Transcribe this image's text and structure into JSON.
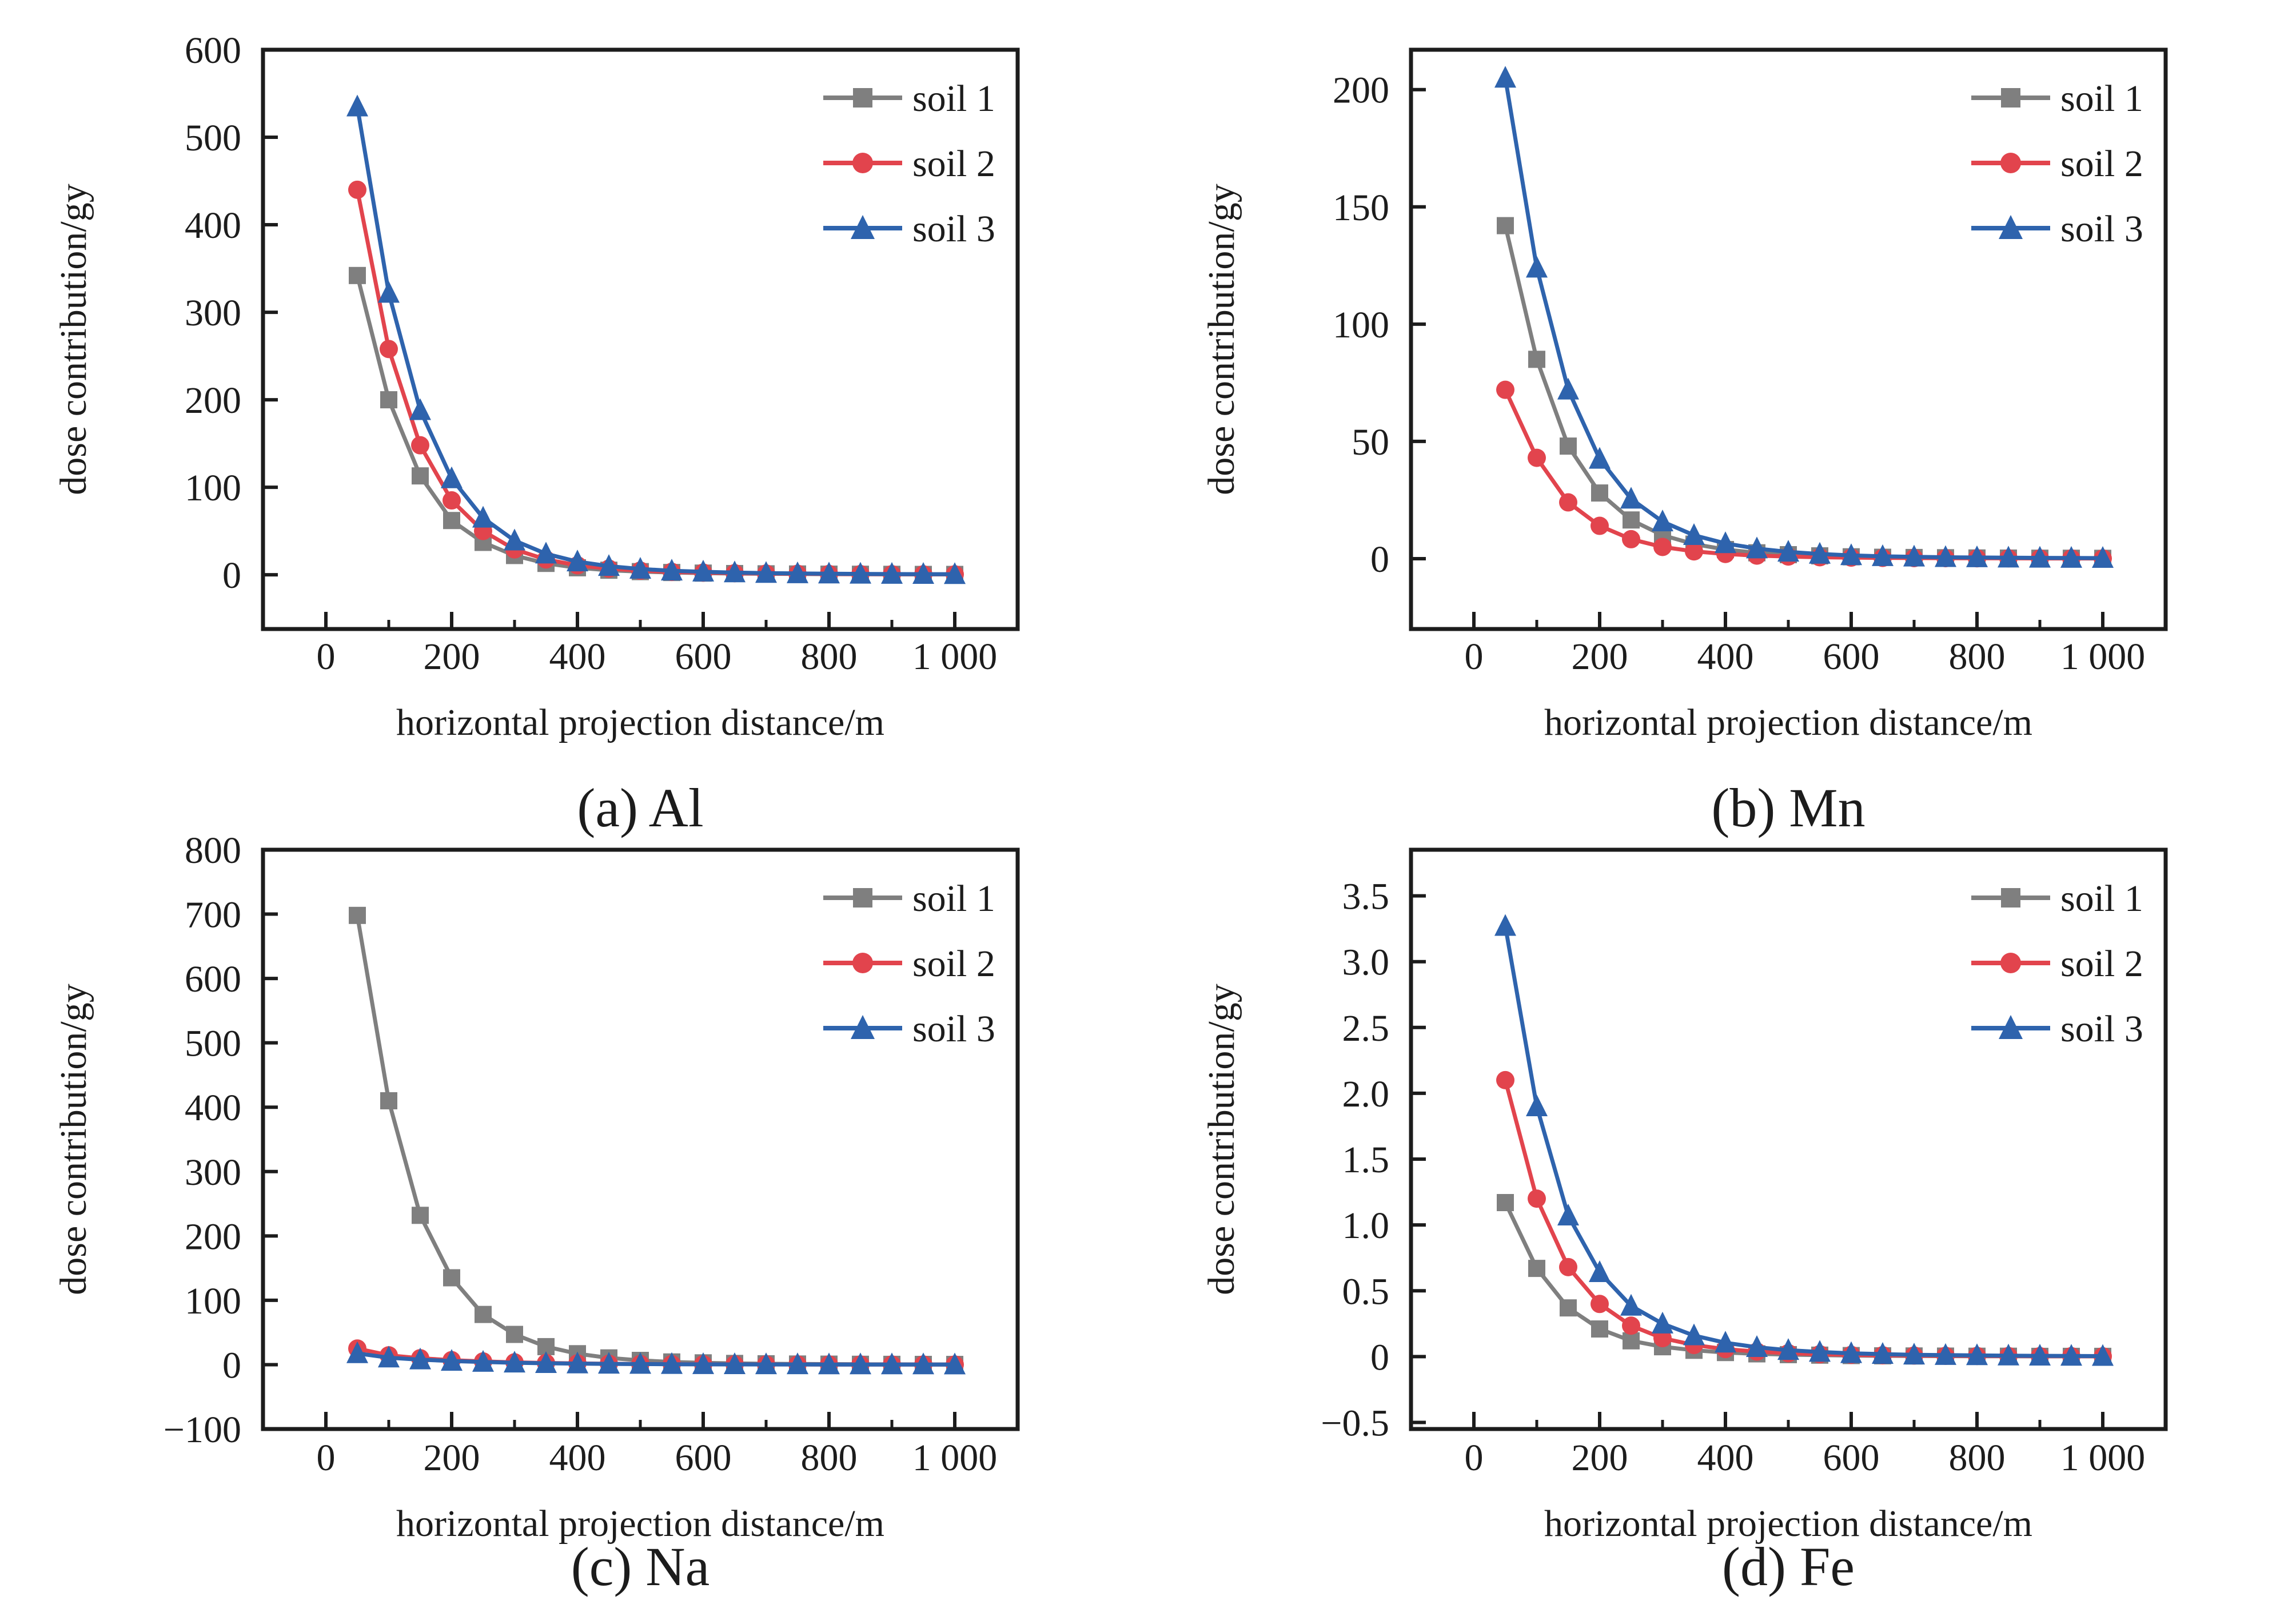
{
  "figure": {
    "background": "#ffffff",
    "frame_color": "#1c1c1c",
    "text_color": "#1c1c1c",
    "xlabel": "horizontal projection distance/m",
    "ylabel": "dose contribution/gy",
    "x_tick_labels": [
      "0",
      "200",
      "400",
      "600",
      "800",
      "1 000"
    ],
    "x_tick_values": [
      0,
      200,
      400,
      600,
      800,
      1000
    ],
    "x_minor_tick_values": [
      100,
      300,
      500,
      700,
      900
    ],
    "xlim": [
      -100,
      1100
    ],
    "legend": {
      "position": "top-right",
      "items": [
        {
          "label": "soil 1",
          "marker": "square",
          "color": "#7f7f7f"
        },
        {
          "label": "soil 2",
          "marker": "circle",
          "color": "#e2444d"
        },
        {
          "label": "soil 3",
          "marker": "triangle",
          "color": "#2e63ad"
        }
      ]
    }
  },
  "chart_data": [
    {
      "type": "line",
      "panel": "a",
      "caption": "(a) Al",
      "element": "Al",
      "title": "",
      "xlabel": "horizontal projection distance/m",
      "ylabel": "dose contribution/gy",
      "grid": false,
      "legend_position": "top-right",
      "ylim": [
        -62,
        600
      ],
      "ytick_values": [
        0,
        100,
        200,
        300,
        400,
        500,
        600
      ],
      "ytick_labels": [
        "0",
        "100",
        "200",
        "300",
        "400",
        "500",
        "600"
      ],
      "x": [
        50,
        100,
        150,
        200,
        250,
        300,
        350,
        400,
        450,
        500,
        550,
        600,
        650,
        700,
        750,
        800,
        850,
        900,
        950,
        1000
      ],
      "series": [
        {
          "name": "soil 1",
          "marker": "square",
          "color": "#7f7f7f",
          "values": [
            342,
            200,
            113,
            62,
            37,
            22,
            13,
            8,
            5.2,
            3.6,
            2.6,
            1.9,
            1.4,
            1.1,
            0.9,
            0.7,
            0.6,
            0.5,
            0.4,
            0.4
          ]
        },
        {
          "name": "soil 2",
          "marker": "circle",
          "color": "#e2444d",
          "values": [
            440,
            258,
            148,
            85,
            50,
            29,
            17.5,
            10.8,
            7,
            4.7,
            3.3,
            2.4,
            1.8,
            1.4,
            1.1,
            0.9,
            0.7,
            0.6,
            0.5,
            0.5
          ]
        },
        {
          "name": "soil 3",
          "marker": "triangle",
          "color": "#2e63ad",
          "values": [
            535,
            322,
            188,
            110,
            65,
            39,
            24,
            15,
            9.8,
            6.6,
            4.6,
            3.4,
            2.5,
            1.9,
            1.5,
            1.2,
            1,
            0.8,
            0.7,
            0.6
          ]
        }
      ]
    },
    {
      "type": "line",
      "panel": "b",
      "caption": "(b) Mn",
      "element": "Mn",
      "title": "",
      "xlabel": "horizontal projection distance/m",
      "ylabel": "dose contribution/gy",
      "grid": false,
      "legend_position": "top-right",
      "ylim": [
        -30,
        217
      ],
      "ytick_values": [
        0,
        50,
        100,
        150,
        200
      ],
      "ytick_labels": [
        "0",
        "50",
        "100",
        "150",
        "200"
      ],
      "x": [
        50,
        100,
        150,
        200,
        250,
        300,
        350,
        400,
        450,
        500,
        550,
        600,
        650,
        700,
        750,
        800,
        850,
        900,
        950,
        1000
      ],
      "series": [
        {
          "name": "soil 1",
          "marker": "square",
          "color": "#7f7f7f",
          "values": [
            142,
            85,
            48,
            28,
            16.5,
            10,
            6.2,
            3.9,
            2.5,
            1.7,
            1.2,
            0.8,
            0.6,
            0.5,
            0.4,
            0.3,
            0.25,
            0.2,
            0.18,
            0.15
          ]
        },
        {
          "name": "soil 2",
          "marker": "circle",
          "color": "#e2444d",
          "values": [
            72,
            43,
            24,
            14,
            8.3,
            5,
            3.1,
            2,
            1.3,
            0.9,
            0.6,
            0.45,
            0.33,
            0.25,
            0.2,
            0.16,
            0.13,
            0.1,
            0.09,
            0.08
          ]
        },
        {
          "name": "soil 3",
          "marker": "triangle",
          "color": "#2e63ad",
          "values": [
            205,
            124,
            72,
            42.5,
            25.5,
            15.8,
            10,
            6.5,
            4.3,
            2.9,
            2,
            1.4,
            1,
            0.8,
            0.6,
            0.5,
            0.4,
            0.33,
            0.28,
            0.24
          ]
        }
      ]
    },
    {
      "type": "line",
      "panel": "c",
      "caption": "(c) Na",
      "element": "Na",
      "title": "",
      "xlabel": "horizontal projection distance/m",
      "ylabel": "dose contribution/gy",
      "grid": false,
      "legend_position": "top-right",
      "ylim": [
        -100,
        800
      ],
      "ytick_values": [
        -100,
        0,
        100,
        200,
        300,
        400,
        500,
        600,
        700,
        800
      ],
      "ytick_labels": [
        "−100",
        "0",
        "100",
        "200",
        "300",
        "400",
        "500",
        "600",
        "700",
        "800"
      ],
      "x": [
        50,
        100,
        150,
        200,
        250,
        300,
        350,
        400,
        450,
        500,
        550,
        600,
        650,
        700,
        750,
        800,
        850,
        900,
        950,
        1000
      ],
      "series": [
        {
          "name": "soil 1",
          "marker": "square",
          "color": "#7f7f7f",
          "values": [
            698,
            410,
            232,
            135,
            78,
            47,
            28,
            17,
            10.5,
            6.6,
            4.2,
            2.8,
            1.9,
            1.4,
            1,
            0.8,
            0.6,
            0.5,
            0.4,
            0.35
          ]
        },
        {
          "name": "soil 2",
          "marker": "circle",
          "color": "#e2444d",
          "values": [
            25,
            14.5,
            10,
            7,
            5,
            3.6,
            2.6,
            1.9,
            1.4,
            1,
            0.8,
            0.6,
            0.5,
            0.4,
            0.3,
            0.25,
            0.2,
            0.18,
            0.15,
            0.13
          ]
        },
        {
          "name": "soil 3",
          "marker": "triangle",
          "color": "#2e63ad",
          "values": [
            17.5,
            10.8,
            7.8,
            5.6,
            4.1,
            3,
            2.2,
            1.6,
            1.2,
            0.9,
            0.7,
            0.5,
            0.4,
            0.33,
            0.27,
            0.22,
            0.18,
            0.15,
            0.13,
            0.11
          ]
        }
      ]
    },
    {
      "type": "line",
      "panel": "d",
      "caption": "(d) Fe",
      "element": "Fe",
      "title": "",
      "xlabel": "horizontal projection distance/m",
      "ylabel": "dose contribution/gy",
      "grid": false,
      "legend_position": "top-right",
      "ylim": [
        -0.55,
        3.85
      ],
      "ytick_values": [
        -0.5,
        0,
        0.5,
        1.0,
        1.5,
        2.0,
        2.5,
        3.0,
        3.5
      ],
      "ytick_labels": [
        "−0.5",
        "0",
        "0.5",
        "1.0",
        "1.5",
        "2.0",
        "2.5",
        "3.0",
        "3.5"
      ],
      "x": [
        50,
        100,
        150,
        200,
        250,
        300,
        350,
        400,
        450,
        500,
        550,
        600,
        650,
        700,
        750,
        800,
        850,
        900,
        950,
        1000
      ],
      "series": [
        {
          "name": "soil 1",
          "marker": "square",
          "color": "#7f7f7f",
          "values": [
            1.17,
            0.67,
            0.37,
            0.21,
            0.12,
            0.075,
            0.048,
            0.031,
            0.021,
            0.015,
            0.011,
            0.008,
            0.006,
            0.005,
            0.004,
            0.003,
            0.003,
            0.002,
            0.002,
            0.002
          ]
        },
        {
          "name": "soil 2",
          "marker": "circle",
          "color": "#e2444d",
          "values": [
            2.1,
            1.2,
            0.68,
            0.4,
            0.235,
            0.14,
            0.088,
            0.057,
            0.038,
            0.026,
            0.018,
            0.013,
            0.01,
            0.008,
            0.006,
            0.005,
            0.004,
            0.003,
            0.003,
            0.002
          ]
        },
        {
          "name": "soil 3",
          "marker": "triangle",
          "color": "#2e63ad",
          "values": [
            3.27,
            1.9,
            1.07,
            0.64,
            0.385,
            0.25,
            0.16,
            0.105,
            0.071,
            0.049,
            0.035,
            0.025,
            0.019,
            0.014,
            0.011,
            0.009,
            0.007,
            0.006,
            0.005,
            0.004
          ]
        }
      ]
    }
  ]
}
